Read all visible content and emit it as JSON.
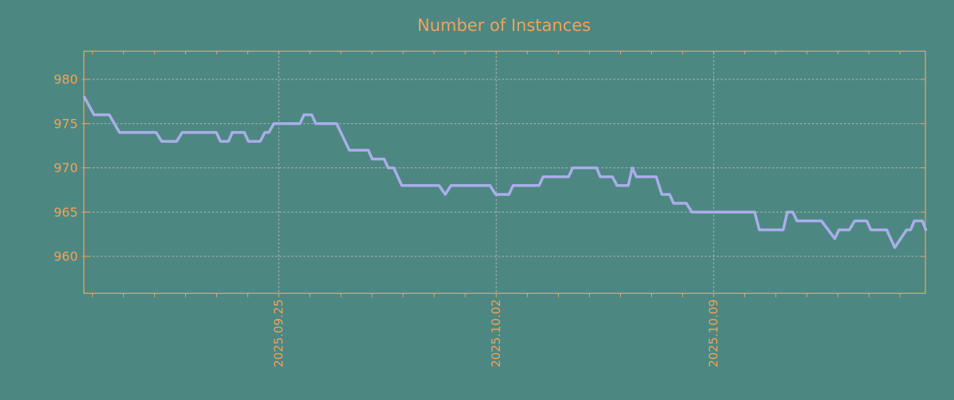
{
  "colors": {
    "background": "#4d8782",
    "accent": "#f0a359",
    "line": "#a9aee9",
    "grid": "#bcc5c2"
  },
  "chart_data": {
    "type": "line",
    "title": "Number of Instances",
    "xlabel": "",
    "ylabel": "",
    "grid": true,
    "legend_position": "none",
    "yticks": [
      980,
      975,
      970,
      965,
      960
    ],
    "y_axis_range": [
      955.9,
      983.3
    ],
    "x_axis_range_days": [
      -0.27,
      26.85
    ],
    "x_day0_date": "2025.09.19",
    "x_minor_tick_every_days": 1,
    "xticks": [
      {
        "label": "2025.09.25",
        "day": 6
      },
      {
        "label": "2025.10.02",
        "day": 13
      },
      {
        "label": "2025.10.09",
        "day": 20
      }
    ],
    "series": [
      {
        "name": "instances",
        "points": [
          [
            -0.26,
            978
          ],
          [
            0.05,
            976
          ],
          [
            0.54,
            976
          ],
          [
            0.87,
            974
          ],
          [
            2.05,
            974
          ],
          [
            2.23,
            973
          ],
          [
            2.71,
            973
          ],
          [
            2.89,
            974
          ],
          [
            3.99,
            974
          ],
          [
            4.12,
            973
          ],
          [
            4.38,
            973
          ],
          [
            4.5,
            974
          ],
          [
            4.89,
            974
          ],
          [
            5.02,
            973
          ],
          [
            5.4,
            973
          ],
          [
            5.55,
            974
          ],
          [
            5.68,
            974
          ],
          [
            5.84,
            975
          ],
          [
            6.68,
            975
          ],
          [
            6.81,
            976
          ],
          [
            7.06,
            976
          ],
          [
            7.19,
            975
          ],
          [
            7.86,
            975
          ],
          [
            8.27,
            972
          ],
          [
            8.88,
            972
          ],
          [
            9.01,
            971
          ],
          [
            9.39,
            971
          ],
          [
            9.52,
            970
          ],
          [
            9.7,
            970
          ],
          [
            9.96,
            968
          ],
          [
            11.16,
            968
          ],
          [
            11.36,
            967
          ],
          [
            11.54,
            968
          ],
          [
            12.8,
            968
          ],
          [
            12.98,
            967
          ],
          [
            13.41,
            967
          ],
          [
            13.54,
            968
          ],
          [
            14.38,
            968
          ],
          [
            14.51,
            969
          ],
          [
            15.33,
            969
          ],
          [
            15.46,
            970
          ],
          [
            16.23,
            970
          ],
          [
            16.35,
            969
          ],
          [
            16.74,
            969
          ],
          [
            16.89,
            968
          ],
          [
            17.25,
            968
          ],
          [
            17.38,
            970
          ],
          [
            17.51,
            969
          ],
          [
            18.15,
            969
          ],
          [
            18.33,
            967
          ],
          [
            18.58,
            967
          ],
          [
            18.71,
            966
          ],
          [
            19.12,
            966
          ],
          [
            19.3,
            965
          ],
          [
            21.32,
            965
          ],
          [
            21.47,
            963
          ],
          [
            22.24,
            963
          ],
          [
            22.37,
            965
          ],
          [
            22.55,
            965
          ],
          [
            22.68,
            964
          ],
          [
            23.47,
            964
          ],
          [
            23.9,
            962
          ],
          [
            24.03,
            963
          ],
          [
            24.37,
            963
          ],
          [
            24.54,
            964
          ],
          [
            24.93,
            964
          ],
          [
            25.06,
            963
          ],
          [
            25.57,
            963
          ],
          [
            25.83,
            961
          ],
          [
            26.21,
            963
          ],
          [
            26.34,
            963
          ],
          [
            26.46,
            964
          ],
          [
            26.72,
            964
          ],
          [
            26.83,
            963
          ]
        ]
      }
    ]
  }
}
